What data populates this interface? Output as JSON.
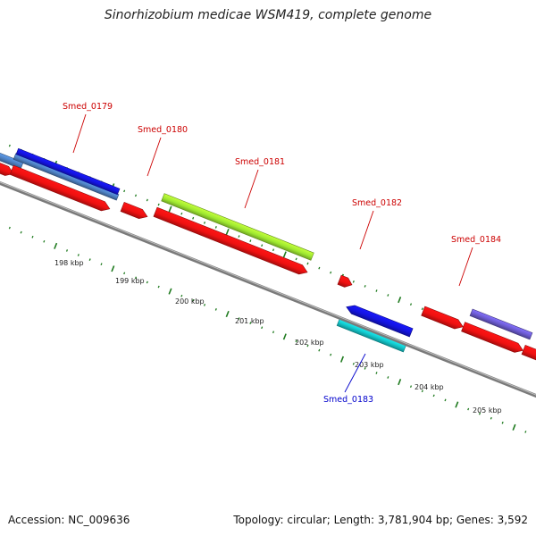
{
  "title": "Sinorhizobium medicae WSM419, complete genome",
  "footer": {
    "accession": "Accession: NC_009636",
    "summary": "Topology: circular; Length: 3,781,904 bp; Genes: 3,592"
  },
  "colors": {
    "backbone": "#7a7a7a",
    "ruler_ticks": "#1e7a1e",
    "cds": "#ee1111",
    "gene_blue": "#1414dd",
    "gene_steel": "#4d7fbf",
    "gene_lime": "#9ee830",
    "gene_cyan": "#14c8cc",
    "gene_purple": "#6a5acd",
    "label_plus": "#cc0000",
    "label_minus": "#0000cc"
  },
  "ruler": {
    "unit": "kbp",
    "labels": [
      "198 kbp",
      "199 kbp",
      "200 kbp",
      "201 kbp",
      "202 kbp",
      "203 kbp",
      "204 kbp",
      "205 kbp"
    ]
  },
  "gene_labels": [
    {
      "text": "Smed_0179",
      "color_key": "label_plus"
    },
    {
      "text": "Smed_0180",
      "color_key": "label_plus"
    },
    {
      "text": "Smed_0181",
      "color_key": "label_plus"
    },
    {
      "text": "Smed_0182",
      "color_key": "label_plus"
    },
    {
      "text": "Smed_0184",
      "color_key": "label_plus"
    },
    {
      "text": "Smed_0183",
      "color_key": "label_minus"
    }
  ]
}
